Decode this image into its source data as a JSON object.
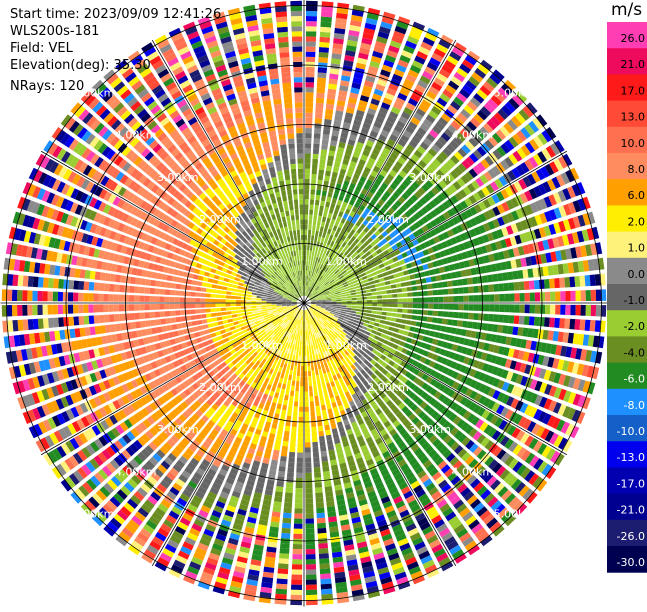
{
  "header": {
    "start_time": "Start time: 2023/09/09 12:41:26",
    "instrument": "WLS200s-181",
    "field": "Field: VEL",
    "elevation": "Elevation(deg): 35.30",
    "nrays": "NRays: 120"
  },
  "colorbar": {
    "unit": "m/s",
    "bins": [
      {
        "label": "26.0",
        "color": "#ff3eb4"
      },
      {
        "label": "21.0",
        "color": "#ee0a5c"
      },
      {
        "label": "17.0",
        "color": "#ff1a1a"
      },
      {
        "label": "13.0",
        "color": "#ff4a36"
      },
      {
        "label": "10.0",
        "color": "#ff7050"
      },
      {
        "label": "8.0",
        "color": "#ff8c5e"
      },
      {
        "label": "6.0",
        "color": "#ffa000"
      },
      {
        "label": "2.0",
        "color": "#ffee00"
      },
      {
        "label": "1.0",
        "color": "#fff27a"
      },
      {
        "label": "0.0",
        "color": "#8a8a8a"
      },
      {
        "label": "-1.0",
        "color": "#666666"
      },
      {
        "label": "-2.0",
        "color": "#9acd32"
      },
      {
        "label": "-4.0",
        "color": "#6b8e23"
      },
      {
        "label": "-6.0",
        "color": "#228b22"
      },
      {
        "label": "-8.0",
        "color": "#1e90ff"
      },
      {
        "label": "-10.0",
        "color": "#1460c8"
      },
      {
        "label": "-13.0",
        "color": "#0000ee"
      },
      {
        "label": "-17.0",
        "color": "#0000b0"
      },
      {
        "label": "-21.0",
        "color": "#000090"
      },
      {
        "label": "-26.0",
        "color": "#1c1c70"
      },
      {
        "label": "-30.0",
        "color": "#000050"
      }
    ]
  },
  "rings": {
    "labels_1km": [
      "1.00km",
      "1.00km",
      "1.00km",
      "1.00km"
    ],
    "labels_2km": [
      "2.00km",
      "2.00km",
      "2.00km",
      "2.00km"
    ],
    "labels_3km": [
      "3.00km",
      "3.00km",
      "3.00km",
      "3.00km"
    ],
    "labels_4km": [
      "4.00km",
      "4.00km",
      "4.00km",
      "4.00km"
    ],
    "labels_5km": [
      "5.00km",
      "5.00km",
      "5.00km",
      "5.00km"
    ]
  }
}
